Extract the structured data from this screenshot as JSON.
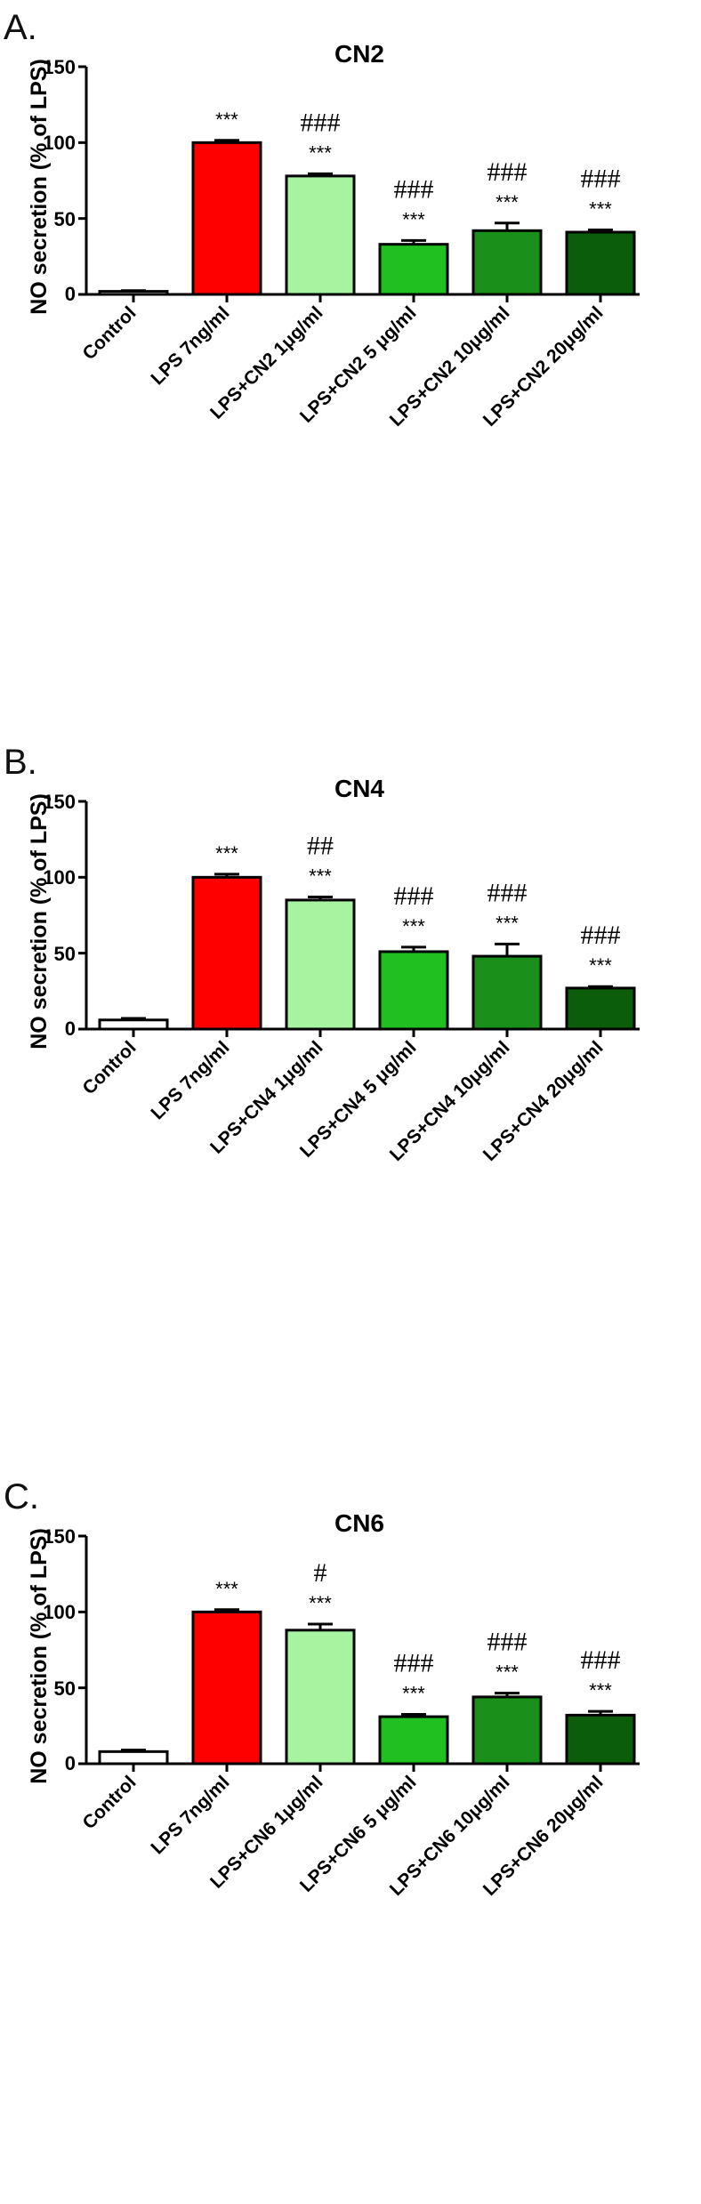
{
  "chart_data": [
    {
      "type": "bar",
      "panel_label": "A.",
      "title": "CN2",
      "ylabel": "NO secretion (% of LPS)",
      "xlabel": "",
      "ylim": [
        0,
        150
      ],
      "yticks": [
        "0",
        "50",
        "100",
        "150"
      ],
      "categories": [
        "Control",
        "LPS 7ng/ml",
        "LPS+CN2 1μg/ml",
        "LPS+CN2 5 μg/ml",
        "LPS+CN2 10μg/ml",
        "LPS+CN2 20μg/ml"
      ],
      "values": [
        2,
        100,
        78,
        33,
        42,
        41
      ],
      "errors": [
        0.5,
        1.5,
        1.5,
        2.5,
        5,
        1.5
      ],
      "colors": [
        "#ffffff",
        "#ff0000",
        "#a6f4a0",
        "#1fc01f",
        "#1a8f1a",
        "#0b5d0b"
      ],
      "stars": [
        "",
        "***",
        "***",
        "***",
        "***",
        "***"
      ],
      "hashes": [
        "",
        "",
        "###",
        "###",
        "###",
        "###"
      ]
    },
    {
      "type": "bar",
      "panel_label": "B.",
      "title": "CN4",
      "ylabel": "NO secretion (% of LPS)",
      "xlabel": "",
      "ylim": [
        0,
        150
      ],
      "yticks": [
        "0",
        "50",
        "100",
        "150"
      ],
      "categories": [
        "Control",
        "LPS 7ng/ml",
        "LPS+CN4 1μg/ml",
        "LPS+CN4 5 μg/ml",
        "LPS+CN4 10μg/ml",
        "LPS+CN4 20μg/ml"
      ],
      "values": [
        6,
        100,
        85,
        51,
        48,
        27
      ],
      "errors": [
        1,
        2,
        2,
        3,
        8,
        1
      ],
      "colors": [
        "#ffffff",
        "#ff0000",
        "#a6f4a0",
        "#1fc01f",
        "#1a8f1a",
        "#0b5d0b"
      ],
      "stars": [
        "",
        "***",
        "***",
        "***",
        "***",
        "***"
      ],
      "hashes": [
        "",
        "",
        "##",
        "###",
        "###",
        "###"
      ]
    },
    {
      "type": "bar",
      "panel_label": "C.",
      "title": "CN6",
      "ylabel": "NO secretion (% of LPS)",
      "xlabel": "",
      "ylim": [
        0,
        150
      ],
      "yticks": [
        "0",
        "50",
        "100",
        "150"
      ],
      "categories": [
        "Control",
        "LPS 7ng/ml",
        "LPS+CN6 1μg/ml",
        "LPS+CN6 5 μg/ml",
        "LPS+CN6 10μg/ml",
        "LPS+CN6 20μg/ml"
      ],
      "values": [
        8,
        100,
        88,
        31,
        44,
        32
      ],
      "errors": [
        1,
        1.5,
        4,
        1.5,
        2.5,
        2.5
      ],
      "colors": [
        "#ffffff",
        "#ff0000",
        "#a6f4a0",
        "#1fc01f",
        "#1a8f1a",
        "#0b5d0b"
      ],
      "stars": [
        "",
        "***",
        "***",
        "***",
        "***",
        "***"
      ],
      "hashes": [
        "",
        "",
        "#",
        "###",
        "###",
        "###"
      ]
    }
  ]
}
